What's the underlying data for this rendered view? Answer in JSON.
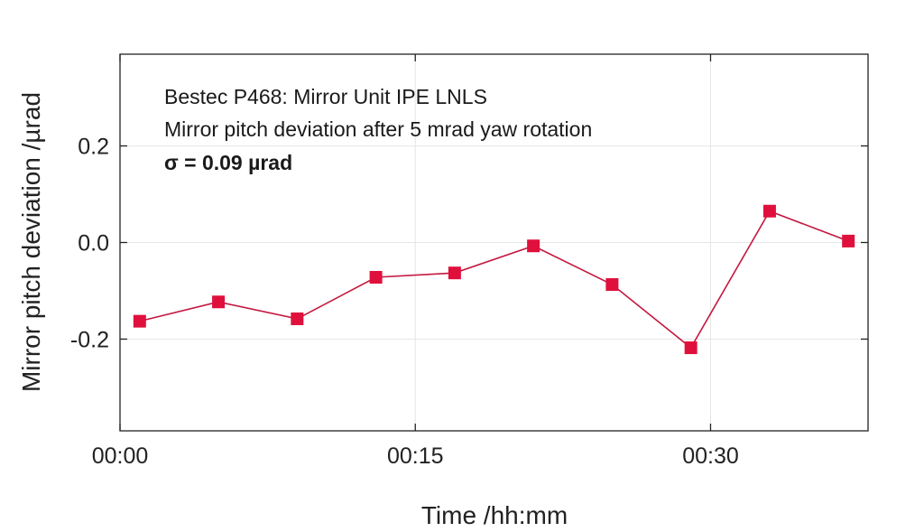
{
  "chart_data": {
    "type": "line",
    "xlabel": "Time /hh:mm",
    "ylabel": "Mirror pitch deviation /µrad",
    "xlim_minutes": [
      0,
      38
    ],
    "ylim": [
      -0.39,
      0.39
    ],
    "x_ticks": [
      {
        "label": "00:00",
        "minutes": 0
      },
      {
        "label": "00:15",
        "minutes": 15
      },
      {
        "label": "00:30",
        "minutes": 30
      }
    ],
    "y_ticks": [
      {
        "label": "0.2",
        "value": 0.2
      },
      {
        "label": "0.0",
        "value": 0.0
      },
      {
        "label": "-0.2",
        "value": -0.2
      }
    ],
    "grid": true,
    "annotations": [
      "Bestec P468: Mirror Unit IPE LNLS",
      "Mirror pitch deviation after 5 mrad yaw rotation",
      "σ = 0.09 µrad"
    ],
    "series": [
      {
        "marker": "square",
        "x_time": [
          "00:01",
          "00:05",
          "00:09",
          "00:13",
          "00:17",
          "00:21",
          "00:25",
          "00:29",
          "00:33",
          "00:37"
        ],
        "x_minutes": [
          1,
          5,
          9,
          13,
          17,
          21,
          25,
          29,
          33,
          37
        ],
        "values": [
          -0.163,
          -0.123,
          -0.158,
          -0.072,
          -0.063,
          -0.007,
          -0.087,
          -0.218,
          0.065,
          0.003
        ]
      }
    ],
    "colors": {
      "series": "#e0103c",
      "line": "#c4163f",
      "grid": "#e6e6e6",
      "axis": "#222222"
    }
  }
}
